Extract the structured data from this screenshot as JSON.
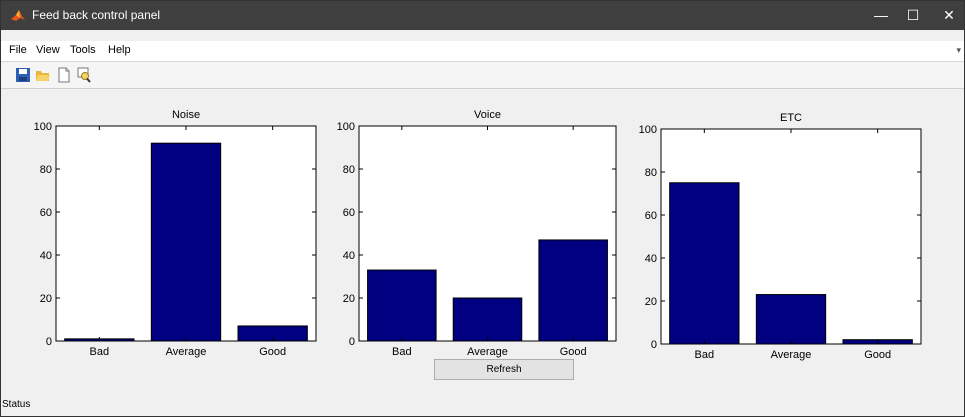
{
  "window": {
    "title": "Feed back control panel",
    "minimize_glyph": "—",
    "maximize_glyph": "☐",
    "close_glyph": "✕"
  },
  "menu": [
    "File",
    "View",
    "Tools",
    "Help"
  ],
  "toolbar": {
    "icons": [
      "save-icon",
      "open-folder-icon",
      "new-document-icon",
      "print-preview-icon"
    ]
  },
  "refresh_label": "Refresh",
  "status_label": "Status",
  "colors": {
    "bar": "#000080",
    "titlebar": "#3f3f3f"
  },
  "chart_data": [
    {
      "type": "bar",
      "title": "Noise",
      "categories": [
        "Bad",
        "Average",
        "Good"
      ],
      "values": [
        1,
        92,
        7
      ],
      "ylim": [
        0,
        100
      ],
      "yticks": [
        0,
        20,
        40,
        60,
        80,
        100
      ]
    },
    {
      "type": "bar",
      "title": "Voice",
      "categories": [
        "Bad",
        "Average",
        "Good"
      ],
      "values": [
        33,
        20,
        47
      ],
      "ylim": [
        0,
        100
      ],
      "yticks": [
        0,
        20,
        40,
        60,
        80,
        100
      ]
    },
    {
      "type": "bar",
      "title": "ETC",
      "categories": [
        "Bad",
        "Average",
        "Good"
      ],
      "values": [
        75,
        23,
        2
      ],
      "ylim": [
        0,
        100
      ],
      "yticks": [
        0,
        20,
        40,
        60,
        80,
        100
      ]
    }
  ]
}
